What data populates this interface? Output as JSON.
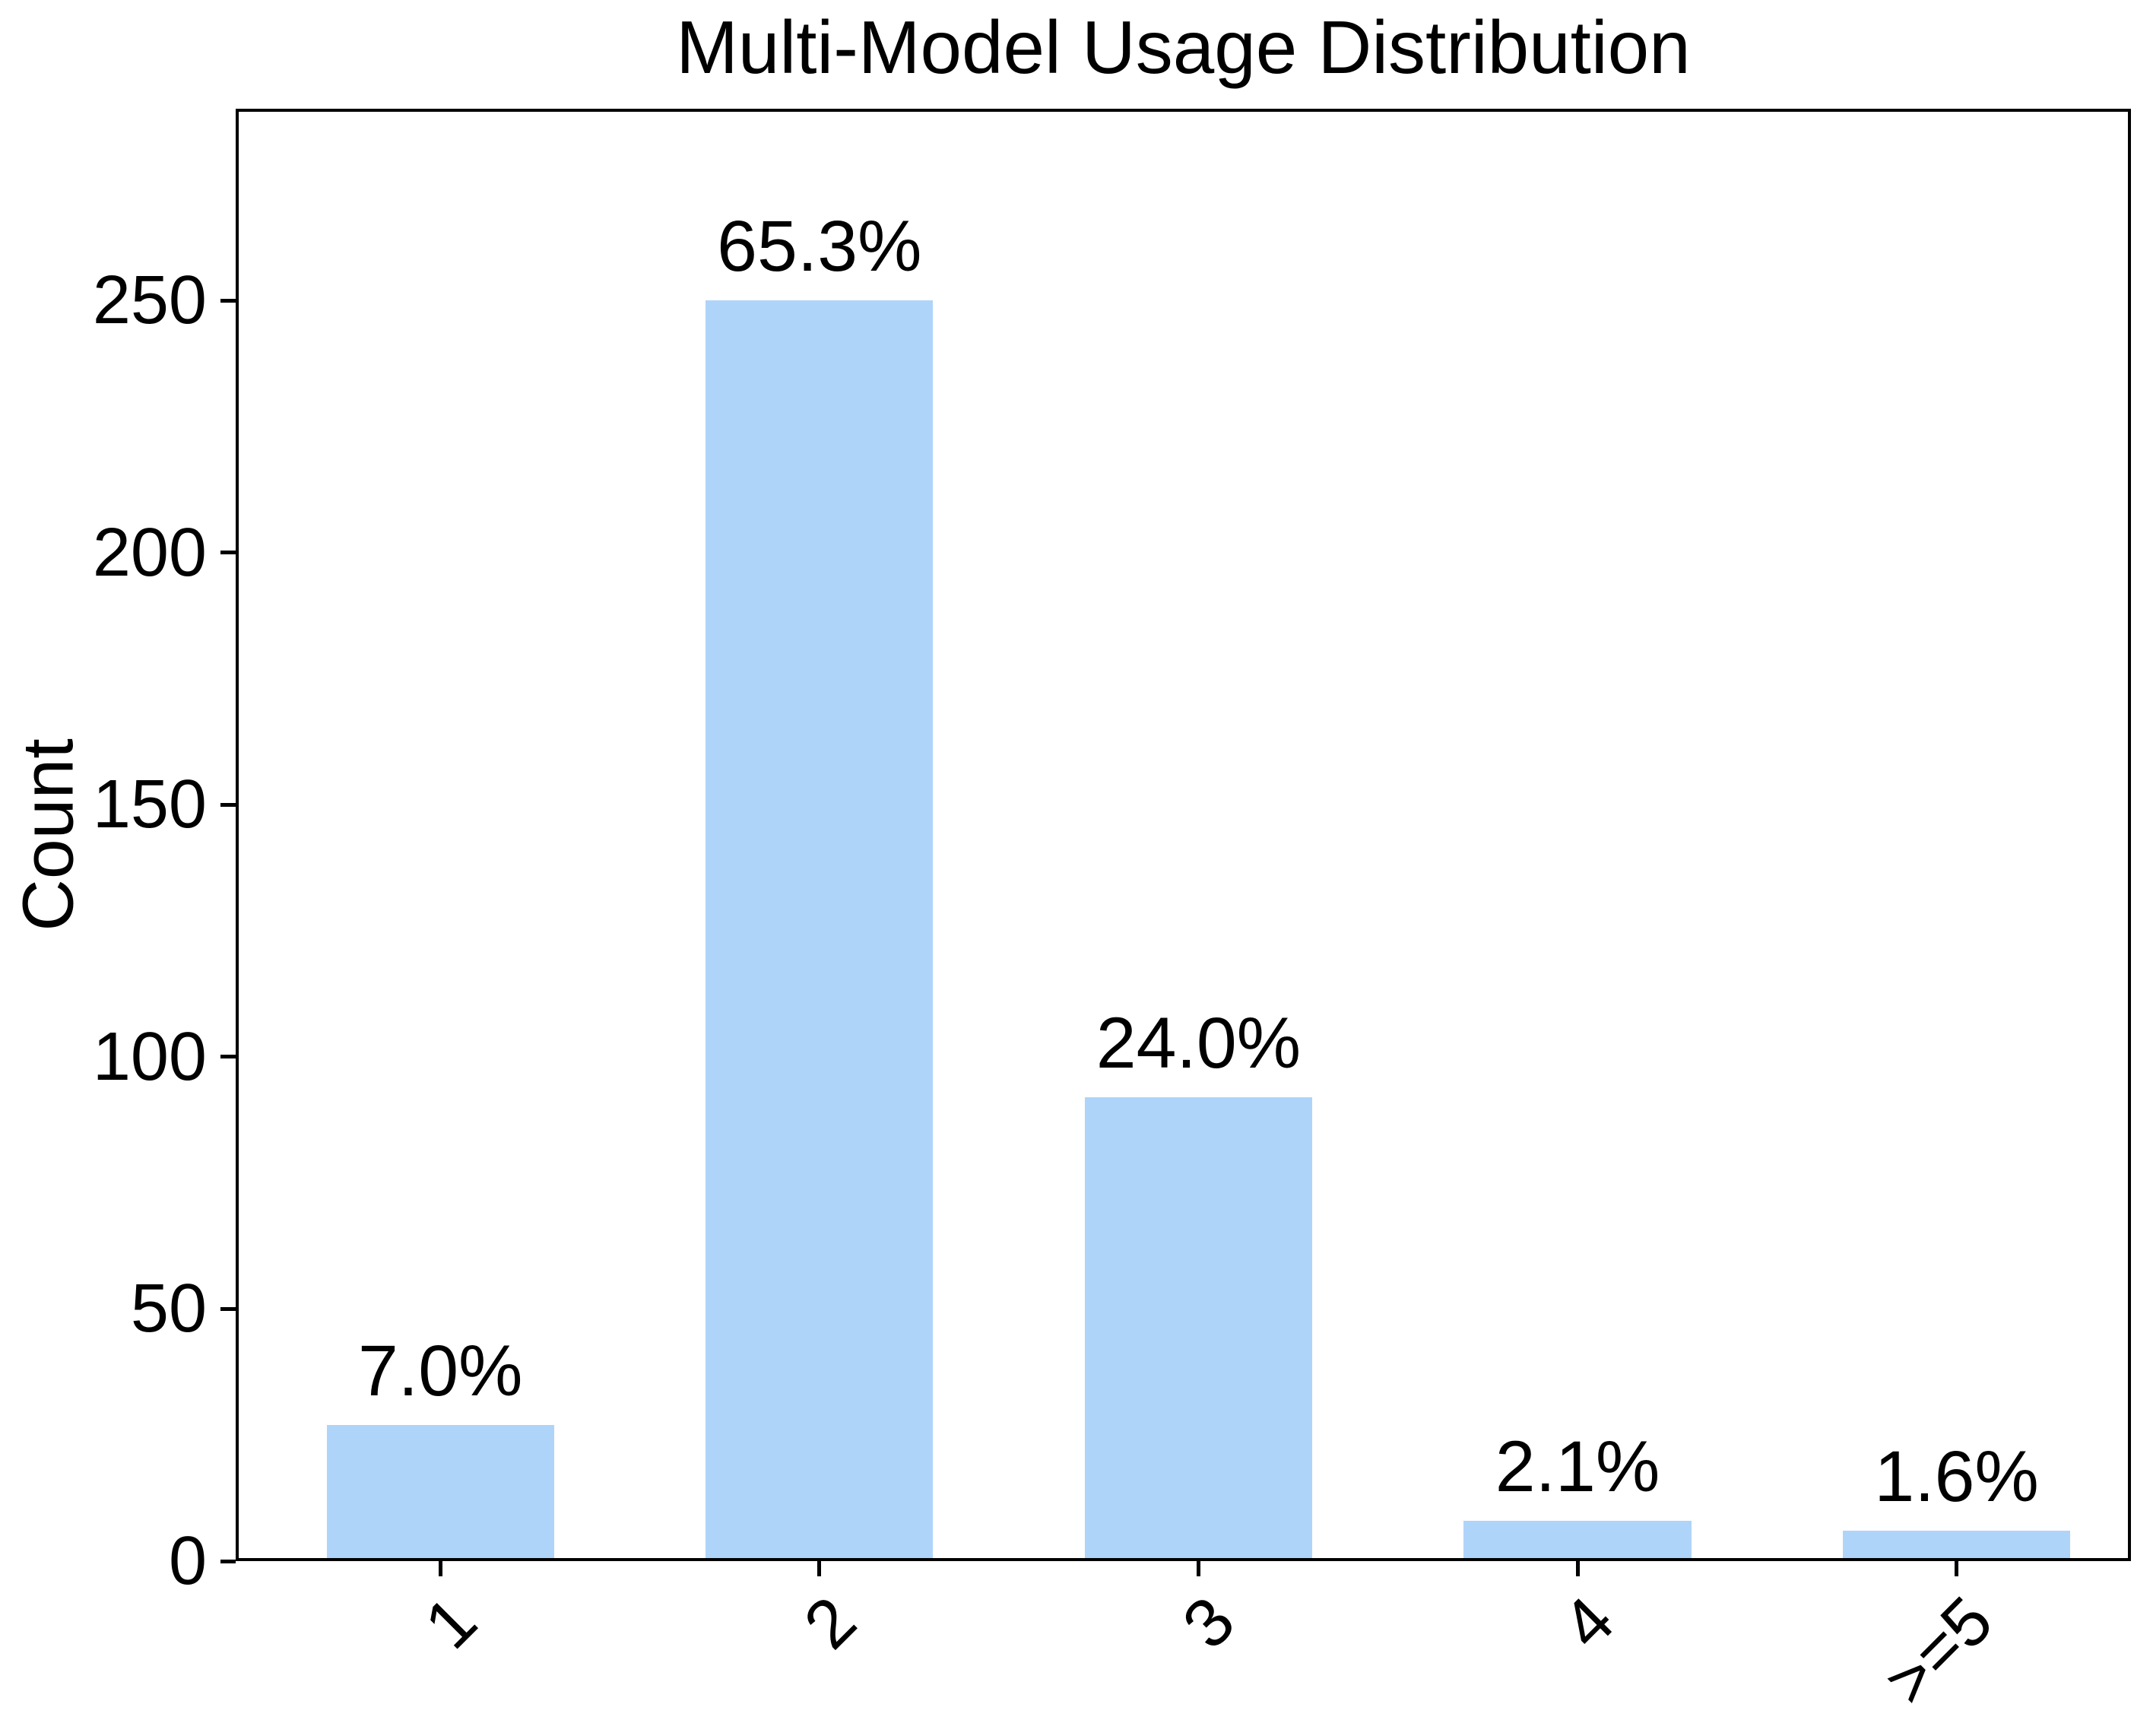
{
  "chart_data": {
    "type": "bar",
    "title": "Multi-Model Usage Distribution",
    "xlabel": "",
    "ylabel": "Count",
    "categories": [
      "1",
      "2",
      "3",
      "4",
      ">=5"
    ],
    "values": [
      27,
      250,
      92,
      8,
      6
    ],
    "bar_labels": [
      "7.0%",
      "65.3%",
      "24.0%",
      "2.1%",
      "1.6%"
    ],
    "yticks": [
      0,
      50,
      100,
      150,
      200,
      250
    ],
    "ylim": [
      0,
      288
    ],
    "grid": false,
    "legend": null,
    "xtick_rotation_deg": 45,
    "bar_color": "#aed4fa",
    "axis_color": "#000000",
    "text_color": "#000000",
    "background_color": "#ffffff"
  }
}
